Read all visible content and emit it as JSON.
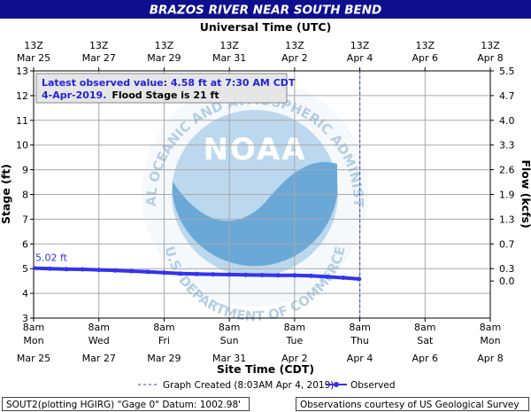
{
  "chart_data": {
    "type": "line",
    "title": "BRAZOS RIVER NEAR SOUTH BEND",
    "top_axis_title": "Universal Time (UTC)",
    "top_ticks": [
      {
        "line1": "13Z",
        "line2": "Mar 25"
      },
      {
        "line1": "13Z",
        "line2": "Mar 27"
      },
      {
        "line1": "13Z",
        "line2": "Mar 29"
      },
      {
        "line1": "13Z",
        "line2": "Mar 31"
      },
      {
        "line1": "13Z",
        "line2": "Apr  2"
      },
      {
        "line1": "13Z",
        "line2": "Apr  4"
      },
      {
        "line1": "13Z",
        "line2": "Apr  6"
      },
      {
        "line1": "13Z",
        "line2": "Apr  8"
      }
    ],
    "xlabel": "Site Time (CDT)",
    "bottom_ticks": [
      {
        "line1": "8am",
        "line2": "Mon",
        "line3": "Mar 25"
      },
      {
        "line1": "8am",
        "line2": "Wed",
        "line3": "Mar 27"
      },
      {
        "line1": "8am",
        "line2": "Fri",
        "line3": "Mar 29"
      },
      {
        "line1": "8am",
        "line2": "Sun",
        "line3": "Mar 31"
      },
      {
        "line1": "8am",
        "line2": "Tue",
        "line3": "Apr 2"
      },
      {
        "line1": "8am",
        "line2": "Thu",
        "line3": "Apr 4"
      },
      {
        "line1": "8am",
        "line2": "Sat",
        "line3": "Apr 6"
      },
      {
        "line1": "8am",
        "line2": "Mon",
        "line3": "Apr 8"
      }
    ],
    "x_range": [
      "2019-03-25T08:00",
      "2019-04-08T08:00"
    ],
    "ylabel": "Stage (ft)",
    "ylim": [
      3,
      13
    ],
    "y_ticks": [
      3,
      4,
      5,
      6,
      7,
      8,
      9,
      10,
      11,
      12,
      13
    ],
    "y2label": "Flow (kcfs)",
    "y2_ticks": [
      {
        "stage": 4.5,
        "label": "0.0"
      },
      {
        "stage": 5.0,
        "label": "0.3"
      },
      {
        "stage": 6.0,
        "label": "0.7"
      },
      {
        "stage": 7.0,
        "label": "1.3"
      },
      {
        "stage": 8.0,
        "label": "1.9"
      },
      {
        "stage": 9.0,
        "label": "2.6"
      },
      {
        "stage": 10.0,
        "label": "3.3"
      },
      {
        "stage": 11.0,
        "label": "4.0"
      },
      {
        "stage": 12.0,
        "label": "4.7"
      },
      {
        "stage": 13.0,
        "label": "5.5"
      }
    ],
    "grid": true,
    "series": [
      {
        "name": "Observed",
        "color": "#3333ee",
        "points": [
          [
            "2019-03-25T08:00",
            5.02
          ],
          [
            "2019-03-25T20:00",
            5.0
          ],
          [
            "2019-03-26T08:00",
            4.98
          ],
          [
            "2019-03-26T20:00",
            4.97
          ],
          [
            "2019-03-27T08:00",
            4.95
          ],
          [
            "2019-03-27T20:00",
            4.93
          ],
          [
            "2019-03-28T08:00",
            4.9
          ],
          [
            "2019-03-28T20:00",
            4.87
          ],
          [
            "2019-03-29T08:00",
            4.84
          ],
          [
            "2019-03-29T20:00",
            4.8
          ],
          [
            "2019-03-30T08:00",
            4.78
          ],
          [
            "2019-03-30T20:00",
            4.77
          ],
          [
            "2019-03-31T08:00",
            4.76
          ],
          [
            "2019-03-31T20:00",
            4.75
          ],
          [
            "2019-04-01T08:00",
            4.74
          ],
          [
            "2019-04-01T20:00",
            4.73
          ],
          [
            "2019-04-02T08:00",
            4.73
          ],
          [
            "2019-04-02T20:00",
            4.71
          ],
          [
            "2019-04-03T08:00",
            4.67
          ],
          [
            "2019-04-03T20:00",
            4.63
          ],
          [
            "2019-04-04T07:30",
            4.58
          ]
        ]
      }
    ],
    "graph_created_time": "2019-04-04T08:03",
    "first_value_label": "5.02 ft",
    "info_box": {
      "line1": "Latest observed value:  4.58 ft at 7:30 AM CDT",
      "line2a": "4-Apr-2019.",
      "line2b": "Flood Stage is 21 ft"
    },
    "legend": {
      "graph_created": "Graph Created (8:03AM Apr 4, 2019)",
      "observed": "Observed"
    },
    "footer_left": "SOUT2(plotting HGIRG) \"Gage 0\" Datum: 1002.98'",
    "footer_right": "Observations courtesy of US Geological Survey",
    "watermark": {
      "logo_text": "NOAA",
      "ring_text_top": "NATIONAL OCEANIC AND ATMOSPHERIC ADMINISTRATION",
      "ring_text_bottom": "U.S. DEPARTMENT OF COMMERCE"
    },
    "colors": {
      "title_bar": "#0f0f8e",
      "series": "#3333ee",
      "info_text": "#2222dd",
      "grid": "#a8a8a8",
      "noaa_light": "#bcd8ee",
      "noaa_dark": "#6aa8d8"
    }
  }
}
